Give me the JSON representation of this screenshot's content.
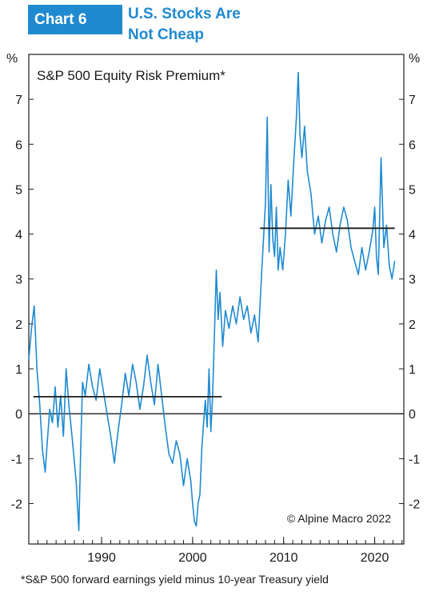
{
  "header": {
    "badge": "Chart 6",
    "title_line1": "U.S. Stocks Are",
    "title_line2": "Not Cheap"
  },
  "footnote": "*S&P 500 forward earnings yield minus 10-year Treasury yield",
  "colors": {
    "accent": "#1f8ad0",
    "line": "#1f8ad0",
    "average": "#1a1a1a"
  },
  "chart_data": {
    "type": "line",
    "title": "S&P 500 Equity Risk Premium*",
    "source": "© Alpine Macro 2022",
    "y_unit_left": "%",
    "y_unit_right": "%",
    "xlim": [
      1982,
      2023.2
    ],
    "ylim": [
      -2.9,
      8
    ],
    "x_ticks": [
      1990,
      2000,
      2010,
      2020
    ],
    "y_ticks": [
      -2,
      -1,
      0,
      1,
      2,
      3,
      4,
      5,
      6,
      7
    ],
    "zero_line": true,
    "series": [
      {
        "name": "",
        "x": [
          1982.0,
          1982.3,
          1982.6,
          1982.9,
          1983.2,
          1983.5,
          1983.8,
          1984.0,
          1984.3,
          1984.6,
          1984.9,
          1985.2,
          1985.5,
          1985.8,
          1986.1,
          1986.4,
          1986.8,
          1987.2,
          1987.5,
          1987.7,
          1987.9,
          1988.2,
          1988.6,
          1989.0,
          1989.4,
          1989.8,
          1990.2,
          1990.6,
          1991.0,
          1991.4,
          1991.8,
          1992.2,
          1992.6,
          1993.0,
          1993.4,
          1993.8,
          1994.2,
          1994.6,
          1995.0,
          1995.4,
          1995.8,
          1996.2,
          1996.6,
          1997.0,
          1997.4,
          1997.8,
          1998.2,
          1998.6,
          1999.0,
          1999.4,
          1999.8,
          2000.0,
          2000.2,
          2000.4,
          2000.6,
          2000.8,
          2001.0,
          2001.2,
          2001.4,
          2001.6,
          2001.8,
          2002.0,
          2002.2,
          2002.4,
          2002.6,
          2002.8,
          2003.0,
          2003.3,
          2003.6,
          2004.0,
          2004.4,
          2004.8,
          2005.2,
          2005.6,
          2006.0,
          2006.4,
          2006.8,
          2007.2,
          2007.6,
          2008.0,
          2008.2,
          2008.4,
          2008.6,
          2008.8,
          2009.0,
          2009.2,
          2009.4,
          2009.6,
          2009.9,
          2010.2,
          2010.5,
          2010.8,
          2011.1,
          2011.4,
          2011.6,
          2011.8,
          2012.0,
          2012.3,
          2012.6,
          2013.0,
          2013.4,
          2013.8,
          2014.2,
          2014.6,
          2015.0,
          2015.4,
          2015.8,
          2016.2,
          2016.6,
          2017.0,
          2017.4,
          2017.8,
          2018.2,
          2018.6,
          2019.0,
          2019.4,
          2019.8,
          2020.0,
          2020.2,
          2020.4,
          2020.7,
          2021.0,
          2021.3,
          2021.6,
          2021.9,
          2022.2
        ],
        "y": [
          1.2,
          1.9,
          2.4,
          1.0,
          0.2,
          -0.8,
          -1.3,
          -0.7,
          0.1,
          -0.2,
          0.6,
          -0.3,
          0.4,
          -0.5,
          1.0,
          0.2,
          -0.6,
          -1.5,
          -2.6,
          -0.8,
          0.7,
          0.4,
          1.1,
          0.6,
          0.3,
          1.0,
          0.5,
          0.0,
          -0.5,
          -1.1,
          -0.4,
          0.2,
          0.9,
          0.4,
          1.1,
          0.7,
          0.1,
          0.6,
          1.3,
          0.7,
          0.2,
          1.1,
          0.4,
          -0.3,
          -0.9,
          -1.1,
          -0.6,
          -0.9,
          -1.6,
          -1.0,
          -1.5,
          -2.0,
          -2.4,
          -2.5,
          -2.0,
          -1.8,
          -0.8,
          -0.2,
          0.3,
          -0.3,
          1.0,
          -0.4,
          0.4,
          1.8,
          3.2,
          2.1,
          2.7,
          1.5,
          2.3,
          1.9,
          2.4,
          2.0,
          2.6,
          2.1,
          2.4,
          1.8,
          2.2,
          1.6,
          3.2,
          4.7,
          6.6,
          3.6,
          5.1,
          3.9,
          3.5,
          4.6,
          3.2,
          3.7,
          3.2,
          4.0,
          5.2,
          4.4,
          5.6,
          6.6,
          7.6,
          6.2,
          5.7,
          6.4,
          5.4,
          4.9,
          4.0,
          4.4,
          3.8,
          4.3,
          4.6,
          4.0,
          3.6,
          4.2,
          4.6,
          4.3,
          3.7,
          3.4,
          3.1,
          3.7,
          3.2,
          3.6,
          4.1,
          4.6,
          3.5,
          3.1,
          5.7,
          3.7,
          4.2,
          3.3,
          3.0,
          3.4
        ]
      }
    ],
    "averages": [
      {
        "x": [
          1982.5,
          2003.2
        ],
        "y": 0.38
      },
      {
        "x": [
          2007.4,
          2022.2
        ],
        "y": 4.13
      }
    ]
  }
}
